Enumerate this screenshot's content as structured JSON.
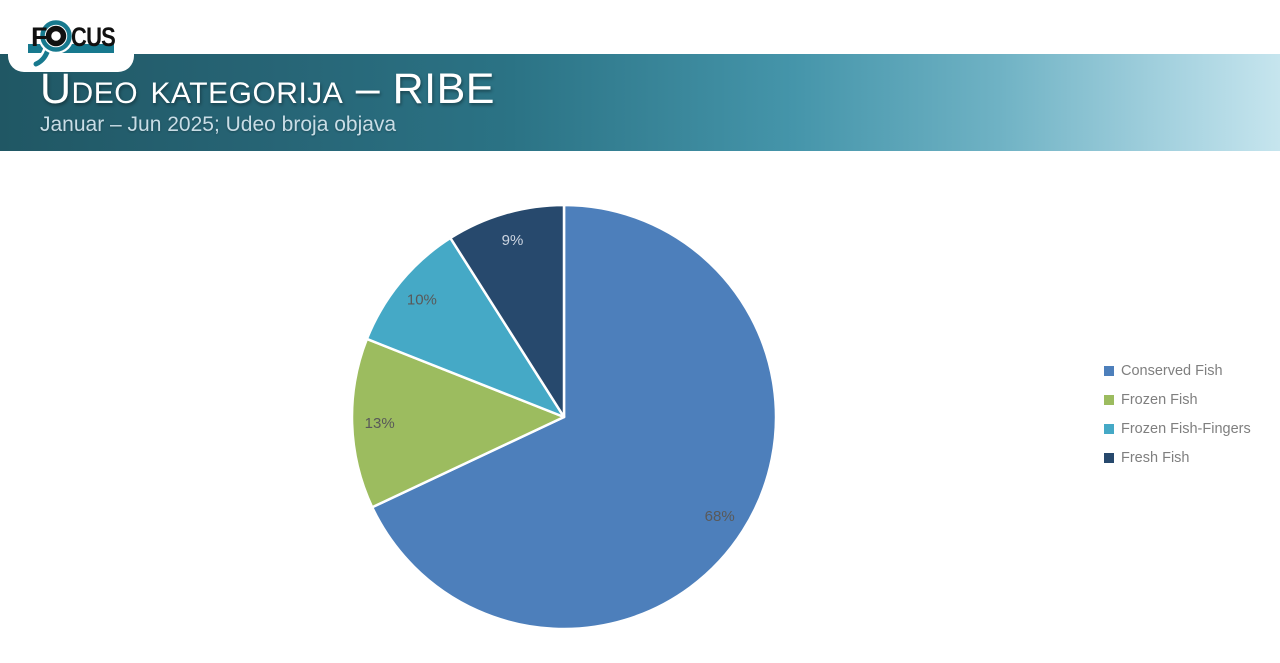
{
  "logo": {
    "f": "F",
    "cus": "CUS",
    "teal": "#17798e",
    "black": "#111111"
  },
  "header": {
    "title": "Udeo kategorija – RIBE",
    "subtitle": "Januar – Jun 2025; Udeo broja objava"
  },
  "chart_data": {
    "type": "pie",
    "title": "Udeo kategorija – RIBE",
    "subtitle": "Januar – Jun 2025; Udeo broja objava",
    "unit": "percent",
    "start_angle_deg": 0,
    "direction": "clockwise",
    "legend_position": "right",
    "slice_border_color": "#ffffff",
    "series": [
      {
        "name": "Conserved Fish",
        "value": 68,
        "label": "68%",
        "color": "#4d7fbb",
        "label_color": "#595959"
      },
      {
        "name": "Frozen Fish",
        "value": 13,
        "label": "13%",
        "color": "#9cbc5f",
        "label_color": "#595959"
      },
      {
        "name": "Frozen Fish-Fingers",
        "value": 10,
        "label": "10%",
        "color": "#45a9c6",
        "label_color": "#595959"
      },
      {
        "name": "Fresh Fish",
        "value": 9,
        "label": "9%",
        "color": "#27496d",
        "label_color": "#ccd4e0"
      }
    ]
  }
}
